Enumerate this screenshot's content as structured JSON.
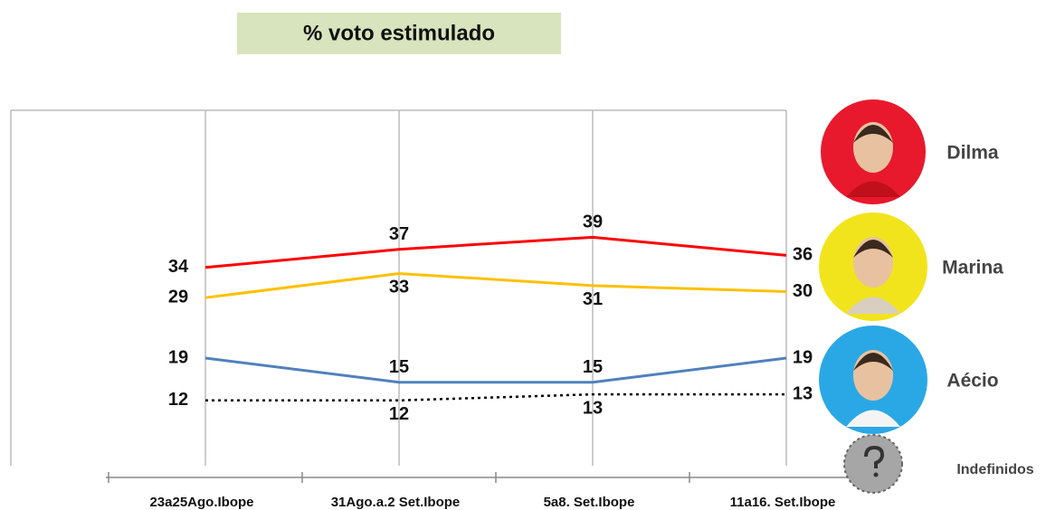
{
  "chart_data": {
    "type": "line",
    "title": "% voto estimulado",
    "categories": [
      "23a25Ago.Ibope",
      "31Ago.a.2 Set.Ibope",
      "5a8. Set.Ibope",
      "11a16. Set.Ibope"
    ],
    "ylim": [
      0,
      60
    ],
    "grid": true,
    "series": [
      {
        "name": "Dilma",
        "color": "#ff0000",
        "values": [
          34,
          37,
          39,
          36
        ]
      },
      {
        "name": "Marina",
        "color": "#ffc000",
        "values": [
          29,
          33,
          31,
          30
        ]
      },
      {
        "name": "Aécio",
        "color": "#4f81bd",
        "values": [
          19,
          15,
          15,
          19
        ]
      },
      {
        "name": "Indefinidos",
        "color": "#000000",
        "line_style": "dotted",
        "values": [
          12,
          12,
          13,
          13
        ]
      }
    ]
  }
}
